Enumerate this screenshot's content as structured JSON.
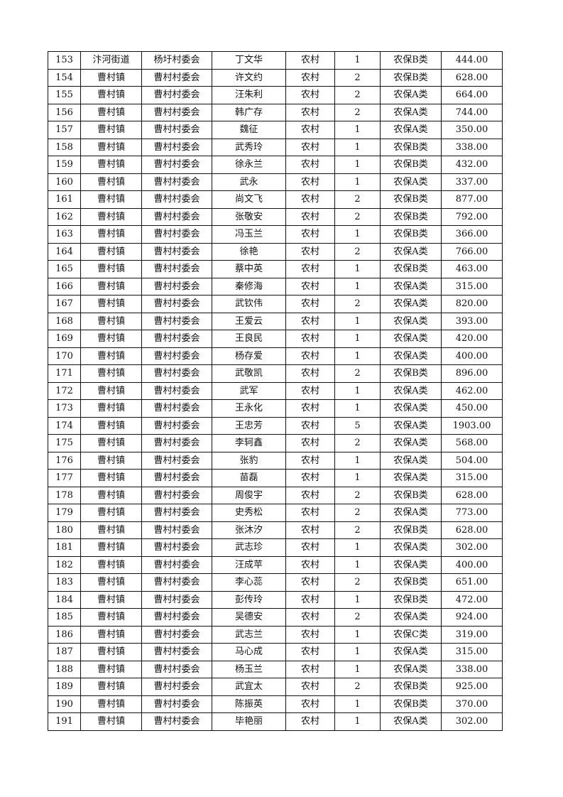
{
  "table": {
    "rows": [
      [
        "153",
        "汴河街道",
        "杨圩村委会",
        "丁文华",
        "农村",
        "1",
        "农保B类",
        "444.00"
      ],
      [
        "154",
        "曹村镇",
        "曹村村委会",
        "许文约",
        "农村",
        "2",
        "农保B类",
        "628.00"
      ],
      [
        "155",
        "曹村镇",
        "曹村村委会",
        "汪朱利",
        "农村",
        "2",
        "农保A类",
        "664.00"
      ],
      [
        "156",
        "曹村镇",
        "曹村村委会",
        "韩广存",
        "农村",
        "2",
        "农保A类",
        "744.00"
      ],
      [
        "157",
        "曹村镇",
        "曹村村委会",
        "魏征",
        "农村",
        "1",
        "农保A类",
        "350.00"
      ],
      [
        "158",
        "曹村镇",
        "曹村村委会",
        "武秀玲",
        "农村",
        "1",
        "农保B类",
        "338.00"
      ],
      [
        "159",
        "曹村镇",
        "曹村村委会",
        "徐永兰",
        "农村",
        "1",
        "农保B类",
        "432.00"
      ],
      [
        "160",
        "曹村镇",
        "曹村村委会",
        "武永",
        "农村",
        "1",
        "农保A类",
        "337.00"
      ],
      [
        "161",
        "曹村镇",
        "曹村村委会",
        "尚文飞",
        "农村",
        "2",
        "农保B类",
        "877.00"
      ],
      [
        "162",
        "曹村镇",
        "曹村村委会",
        "张敬安",
        "农村",
        "2",
        "农保B类",
        "792.00"
      ],
      [
        "163",
        "曹村镇",
        "曹村村委会",
        "冯玉兰",
        "农村",
        "1",
        "农保B类",
        "366.00"
      ],
      [
        "164",
        "曹村镇",
        "曹村村委会",
        "徐艳",
        "农村",
        "2",
        "农保A类",
        "766.00"
      ],
      [
        "165",
        "曹村镇",
        "曹村村委会",
        "蔡中英",
        "农村",
        "1",
        "农保B类",
        "463.00"
      ],
      [
        "166",
        "曹村镇",
        "曹村村委会",
        "秦修海",
        "农村",
        "1",
        "农保A类",
        "315.00"
      ],
      [
        "167",
        "曹村镇",
        "曹村村委会",
        "武钦伟",
        "农村",
        "2",
        "农保A类",
        "820.00"
      ],
      [
        "168",
        "曹村镇",
        "曹村村委会",
        "王爱云",
        "农村",
        "1",
        "农保A类",
        "393.00"
      ],
      [
        "169",
        "曹村镇",
        "曹村村委会",
        "王良民",
        "农村",
        "1",
        "农保A类",
        "420.00"
      ],
      [
        "170",
        "曹村镇",
        "曹村村委会",
        "杨存爱",
        "农村",
        "1",
        "农保A类",
        "400.00"
      ],
      [
        "171",
        "曹村镇",
        "曹村村委会",
        "武敬凯",
        "农村",
        "2",
        "农保B类",
        "896.00"
      ],
      [
        "172",
        "曹村镇",
        "曹村村委会",
        "武军",
        "农村",
        "1",
        "农保A类",
        "462.00"
      ],
      [
        "173",
        "曹村镇",
        "曹村村委会",
        "王永化",
        "农村",
        "1",
        "农保A类",
        "450.00"
      ],
      [
        "174",
        "曹村镇",
        "曹村村委会",
        "王忠芳",
        "农村",
        "5",
        "农保A类",
        "1903.00"
      ],
      [
        "175",
        "曹村镇",
        "曹村村委会",
        "李轲鑫",
        "农村",
        "2",
        "农保A类",
        "568.00"
      ],
      [
        "176",
        "曹村镇",
        "曹村村委会",
        "张豹",
        "农村",
        "1",
        "农保A类",
        "504.00"
      ],
      [
        "177",
        "曹村镇",
        "曹村村委会",
        "苗磊",
        "农村",
        "1",
        "农保A类",
        "315.00"
      ],
      [
        "178",
        "曹村镇",
        "曹村村委会",
        "周俊宇",
        "农村",
        "2",
        "农保B类",
        "628.00"
      ],
      [
        "179",
        "曹村镇",
        "曹村村委会",
        "史秀松",
        "农村",
        "2",
        "农保A类",
        "773.00"
      ],
      [
        "180",
        "曹村镇",
        "曹村村委会",
        "张沐汐",
        "农村",
        "2",
        "农保B类",
        "628.00"
      ],
      [
        "181",
        "曹村镇",
        "曹村村委会",
        "武志珍",
        "农村",
        "1",
        "农保A类",
        "302.00"
      ],
      [
        "182",
        "曹村镇",
        "曹村村委会",
        "汪成苹",
        "农村",
        "1",
        "农保A类",
        "400.00"
      ],
      [
        "183",
        "曹村镇",
        "曹村村委会",
        "李心蕊",
        "农村",
        "2",
        "农保B类",
        "651.00"
      ],
      [
        "184",
        "曹村镇",
        "曹村村委会",
        "彭传玲",
        "农村",
        "1",
        "农保B类",
        "472.00"
      ],
      [
        "185",
        "曹村镇",
        "曹村村委会",
        "吴德安",
        "农村",
        "2",
        "农保A类",
        "924.00"
      ],
      [
        "186",
        "曹村镇",
        "曹村村委会",
        "武志兰",
        "农村",
        "1",
        "农保C类",
        "319.00"
      ],
      [
        "187",
        "曹村镇",
        "曹村村委会",
        "马心成",
        "农村",
        "1",
        "农保A类",
        "315.00"
      ],
      [
        "188",
        "曹村镇",
        "曹村村委会",
        "杨玉兰",
        "农村",
        "1",
        "农保A类",
        "338.00"
      ],
      [
        "189",
        "曹村镇",
        "曹村村委会",
        "武宜太",
        "农村",
        "2",
        "农保B类",
        "925.00"
      ],
      [
        "190",
        "曹村镇",
        "曹村村委会",
        "陈振英",
        "农村",
        "1",
        "农保B类",
        "370.00"
      ],
      [
        "191",
        "曹村镇",
        "曹村村委会",
        "毕艳丽",
        "农村",
        "1",
        "农保A类",
        "302.00"
      ]
    ]
  }
}
